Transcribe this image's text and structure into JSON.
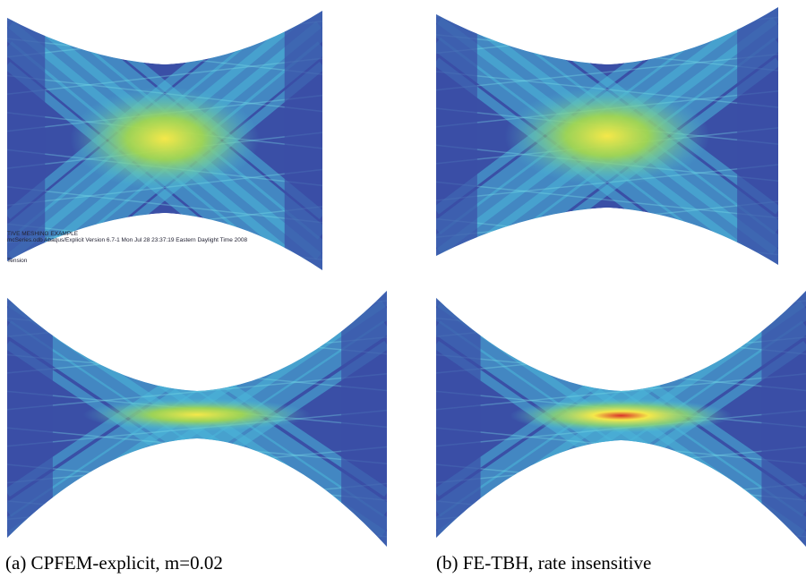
{
  "panels": [
    {
      "overlay": [
        "TIVE MESHING EXAMPLE",
        "mcSeries.odb    Abaqus/Explicit Version 6.7-1    Mon Jul 28 23:37:19 Eastern Daylight Time 2008",
        "Tension"
      ]
    },
    {},
    {},
    {}
  ],
  "captions": [
    "(a) CPFEM-explicit, m=0.02",
    "(b) FE-TBH, rate insensitive"
  ]
}
